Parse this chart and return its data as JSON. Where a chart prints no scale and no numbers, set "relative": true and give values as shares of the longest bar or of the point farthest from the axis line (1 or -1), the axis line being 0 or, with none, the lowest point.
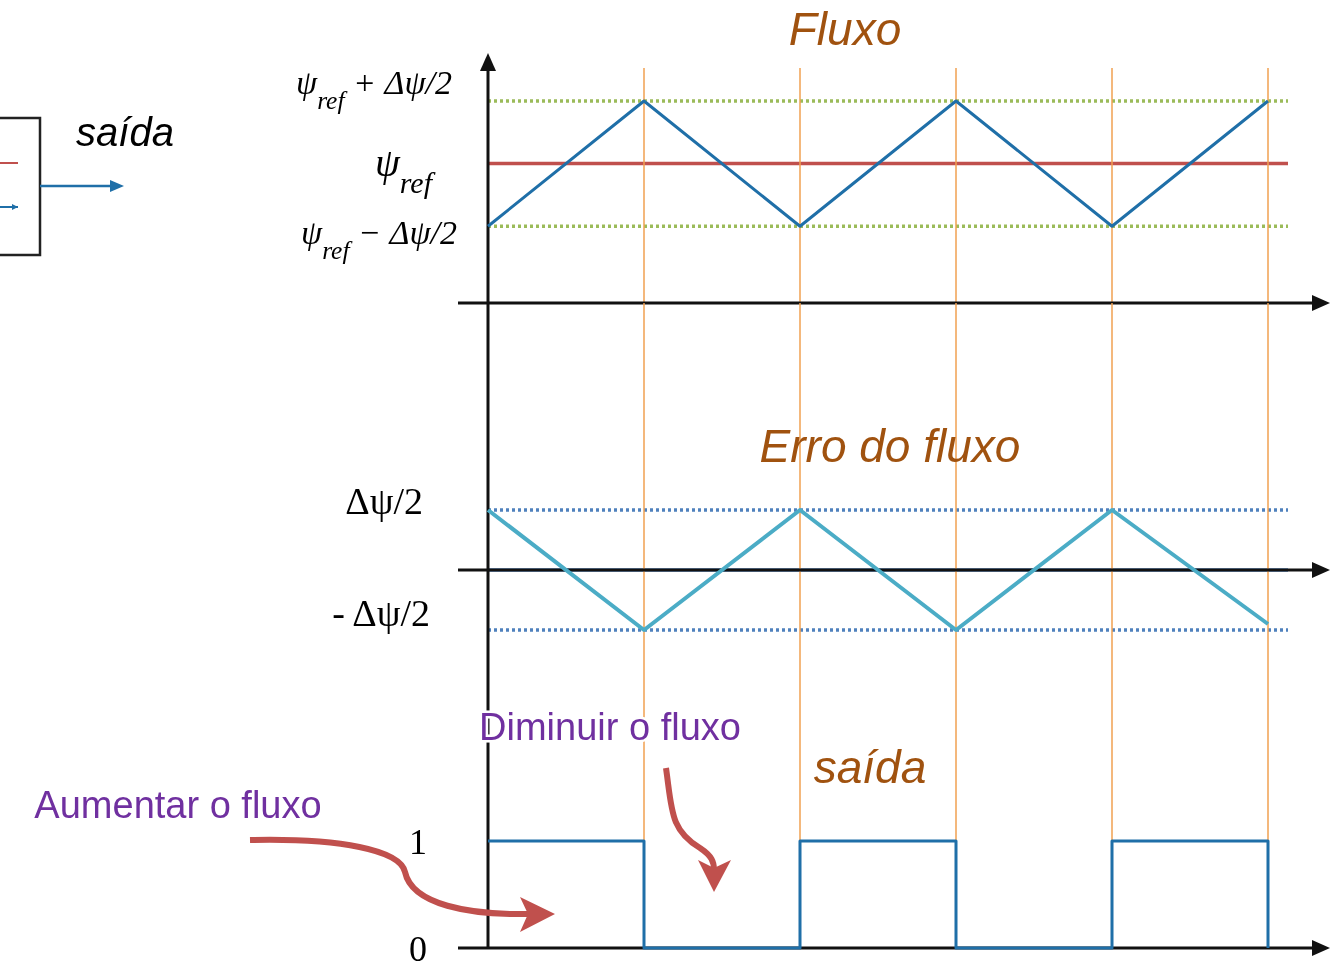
{
  "chart_data": [
    {
      "type": "line",
      "title": "Fluxo",
      "relative": true,
      "tick_labels": false,
      "grid": "x",
      "categories": [
        null,
        null,
        null,
        null,
        null,
        null
      ],
      "series": [
        {
          "color": "#1f6fa8",
          "values": [
            0.38,
            1,
            0.38,
            1,
            0.38,
            1
          ]
        }
      ],
      "ref_lines": [
        {
          "axis": "y",
          "value": 0.69,
          "color": "#c0504d"
        },
        {
          "axis": "y",
          "value": 1,
          "color": "#9bbb59",
          "line_style": "dotted"
        },
        {
          "axis": "y",
          "value": 0.38,
          "color": "#9bbb59",
          "line_style": "dotted"
        }
      ],
      "annotations": [
        "saída",
        "ψ$_{ref}$ + Δψ/2",
        "ψ$_{ref}$",
        "ψ$_{ref}$ − Δψ/2"
      ]
    },
    {
      "type": "line",
      "title": "Erro do fluxo",
      "relative": true,
      "tick_labels": false,
      "grid": "x",
      "categories": [
        null,
        null,
        null,
        null,
        null,
        null
      ],
      "series": [
        {
          "color": "#4bacc6",
          "values": [
            1,
            -1,
            1,
            -1,
            1,
            -0.9
          ]
        }
      ],
      "ref_lines": [
        {
          "axis": "y",
          "value": 0,
          "color": "#4f81bd"
        },
        {
          "axis": "y",
          "value": 1,
          "color": "#4f81bd",
          "line_style": "dotted"
        },
        {
          "axis": "y",
          "value": -1,
          "color": "#4f81bd",
          "line_style": "dotted"
        }
      ],
      "annotations": [
        "Δψ/2",
        "- Δψ/2"
      ]
    },
    {
      "type": "step",
      "title": "saída",
      "ylim": [
        0,
        2
      ],
      "tick_labels": "y",
      "grid": "x",
      "yticks": [
        0,
        1
      ],
      "categories": [
        null,
        null,
        null,
        null,
        null,
        null
      ],
      "series": [
        {
          "color": "#1f6fa8",
          "values": [
            1,
            0,
            1,
            0,
            1,
            0
          ]
        }
      ],
      "annotations": [
        "Diminuir o fluxo",
        "Aumentar o fluxo"
      ]
    }
  ]
}
